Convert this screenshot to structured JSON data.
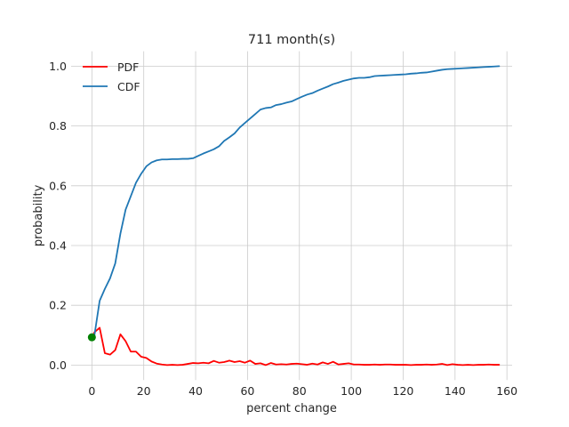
{
  "chart_data": {
    "type": "line",
    "title": "711 month(s)",
    "xlabel": "percent change",
    "ylabel": "probability",
    "xlim": [
      -8,
      162
    ],
    "ylim": [
      -0.05,
      1.05
    ],
    "xticks": [
      0,
      20,
      40,
      60,
      80,
      100,
      120,
      140,
      160
    ],
    "yticks": [
      0.0,
      0.2,
      0.4,
      0.6,
      0.8,
      1.0
    ],
    "xtick_labels": [
      "0",
      "20",
      "40",
      "60",
      "80",
      "100",
      "120",
      "140",
      "160"
    ],
    "ytick_labels": [
      "0.0",
      "0.2",
      "0.4",
      "0.6",
      "0.8",
      "1.0"
    ],
    "grid": true,
    "legend_position": "top-left",
    "series": [
      {
        "name": "PDF",
        "color": "#ff0000",
        "x": [
          0,
          1,
          3,
          5,
          7,
          9,
          11,
          13,
          15,
          17,
          19,
          21,
          23,
          25,
          27,
          29,
          31,
          33,
          35,
          37,
          39,
          41,
          43,
          45,
          47,
          49,
          51,
          53,
          55,
          57,
          59,
          61,
          63,
          65,
          67,
          69,
          71,
          73,
          75,
          77,
          79,
          81,
          83,
          85,
          87,
          89,
          91,
          93,
          95,
          97,
          99,
          101,
          103,
          105,
          107,
          109,
          111,
          113,
          115,
          117,
          119,
          121,
          123,
          125,
          127,
          129,
          131,
          133,
          135,
          137,
          139,
          141,
          143,
          145,
          147,
          149,
          151,
          153,
          155,
          157
        ],
        "values": [
          0.093,
          0.11,
          0.125,
          0.04,
          0.035,
          0.05,
          0.103,
          0.08,
          0.045,
          0.045,
          0.028,
          0.024,
          0.012,
          0.005,
          0.002,
          0.0,
          0.001,
          0.0,
          0.001,
          0.004,
          0.007,
          0.006,
          0.008,
          0.006,
          0.014,
          0.008,
          0.01,
          0.015,
          0.01,
          0.013,
          0.008,
          0.015,
          0.004,
          0.006,
          0.0,
          0.007,
          0.002,
          0.003,
          0.002,
          0.004,
          0.005,
          0.003,
          0.001,
          0.005,
          0.002,
          0.009,
          0.004,
          0.011,
          0.002,
          0.004,
          0.006,
          0.002,
          0.002,
          0.001,
          0.001,
          0.002,
          0.001,
          0.002,
          0.002,
          0.001,
          0.001,
          0.001,
          0.0,
          0.001,
          0.001,
          0.002,
          0.001,
          0.002,
          0.004,
          0.0,
          0.003,
          0.001,
          0.0,
          0.001,
          0.0,
          0.001,
          0.001,
          0.002,
          0.001,
          0.001
        ]
      },
      {
        "name": "CDF",
        "color": "#1f77b4",
        "x": [
          0,
          1,
          3,
          5,
          7,
          9,
          11,
          13,
          15,
          17,
          19,
          21,
          23,
          25,
          27,
          29,
          31,
          33,
          35,
          37,
          39,
          41,
          43,
          45,
          47,
          49,
          51,
          53,
          55,
          57,
          59,
          61,
          63,
          65,
          67,
          69,
          71,
          73,
          75,
          77,
          79,
          81,
          83,
          85,
          87,
          89,
          91,
          93,
          95,
          97,
          99,
          101,
          103,
          105,
          107,
          109,
          111,
          113,
          115,
          117,
          119,
          121,
          123,
          125,
          127,
          129,
          131,
          133,
          135,
          137,
          139,
          141,
          143,
          145,
          147,
          149,
          151,
          153,
          155,
          157
        ],
        "values": [
          0.093,
          0.1,
          0.215,
          0.255,
          0.29,
          0.34,
          0.44,
          0.52,
          0.565,
          0.61,
          0.64,
          0.665,
          0.678,
          0.685,
          0.688,
          0.688,
          0.689,
          0.689,
          0.69,
          0.69,
          0.692,
          0.7,
          0.708,
          0.715,
          0.722,
          0.732,
          0.75,
          0.762,
          0.775,
          0.795,
          0.81,
          0.825,
          0.84,
          0.855,
          0.86,
          0.862,
          0.87,
          0.873,
          0.878,
          0.882,
          0.89,
          0.898,
          0.905,
          0.91,
          0.918,
          0.925,
          0.932,
          0.94,
          0.945,
          0.951,
          0.955,
          0.959,
          0.961,
          0.961,
          0.963,
          0.967,
          0.968,
          0.969,
          0.97,
          0.971,
          0.972,
          0.973,
          0.975,
          0.976,
          0.978,
          0.979,
          0.982,
          0.985,
          0.988,
          0.99,
          0.991,
          0.992,
          0.993,
          0.994,
          0.995,
          0.996,
          0.997,
          0.998,
          0.999,
          1.0
        ]
      }
    ],
    "annotations": [
      {
        "type": "marker",
        "x": 0,
        "y": 0.093,
        "color": "#008000"
      }
    ]
  }
}
